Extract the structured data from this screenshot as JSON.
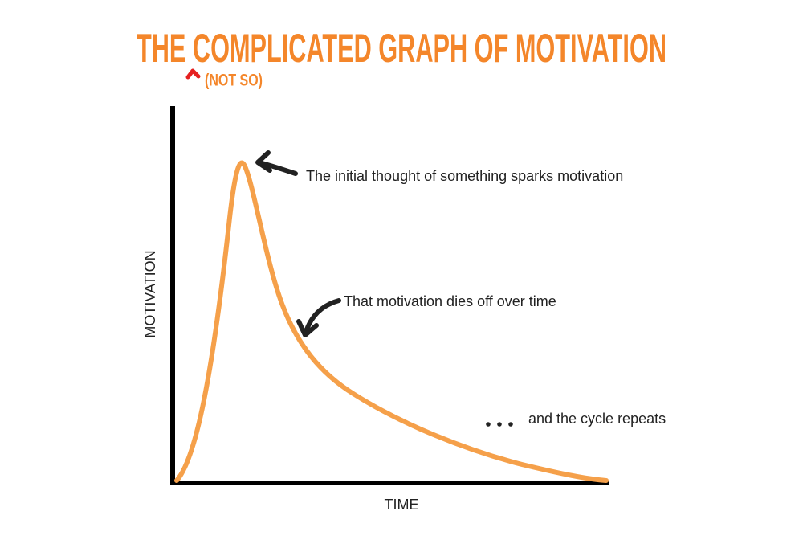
{
  "header": {
    "title": "THE COMPLICATED GRAPH OF MOTIVATION",
    "insert": "(NOT SO)"
  },
  "axes": {
    "y_label": "MOTIVATION",
    "x_label": "TIME"
  },
  "annotations": [
    "The initial thought of something sparks motivation",
    "That motivation dies off over time",
    "and the cycle repeats"
  ]
}
